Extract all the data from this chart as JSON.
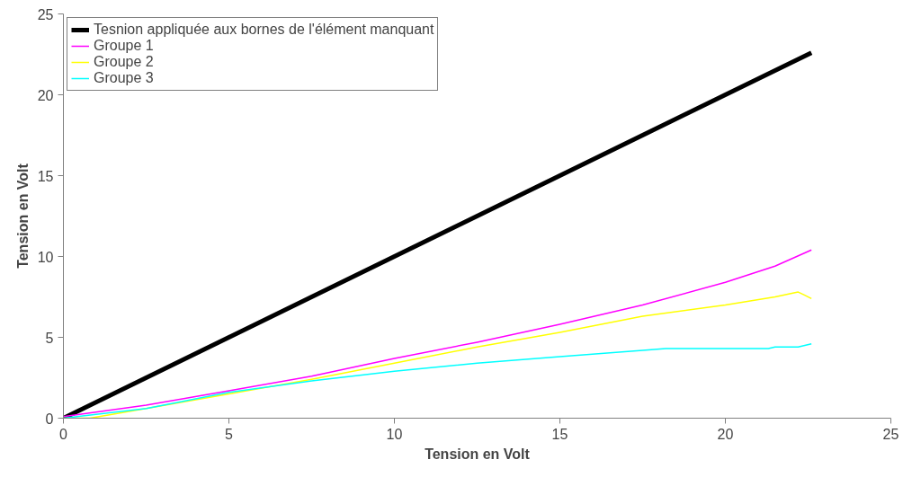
{
  "chart_data": {
    "type": "line",
    "xlabel": "Tension en Volt",
    "ylabel": "Tension en Volt",
    "xlim": [
      0,
      25
    ],
    "ylim": [
      0,
      25
    ],
    "xticks": [
      0,
      5,
      10,
      15,
      20,
      25
    ],
    "yticks": [
      0,
      5,
      10,
      15,
      20,
      25
    ],
    "grid": false,
    "legend": "top left",
    "marker": "none",
    "line_style": "solid",
    "series": [
      {
        "name": "Tesnion appliquée aux bornes de l'élément manquant",
        "color": "#000000",
        "x": [
          0,
          2.5,
          5,
          7.5,
          10,
          12.5,
          15,
          17.5,
          20,
          22.6
        ],
        "values": [
          0,
          2.5,
          5,
          7.5,
          10,
          12.5,
          15,
          17.5,
          20,
          22.6
        ]
      },
      {
        "name": "Groupe 1",
        "color": "#ff00ff",
        "x": [
          0,
          2.5,
          5,
          7.5,
          10,
          12.5,
          15,
          17.5,
          20,
          21.5,
          22.6
        ],
        "values": [
          0.1,
          0.8,
          1.7,
          2.6,
          3.7,
          4.7,
          5.8,
          7.0,
          8.4,
          9.4,
          10.4
        ]
      },
      {
        "name": "Groupe 2",
        "color": "#ffff00",
        "x": [
          0,
          0.8,
          2.5,
          5,
          7.5,
          10,
          12.5,
          15,
          17.5,
          20,
          21.5,
          22.2,
          22.4,
          22.6
        ],
        "values": [
          0,
          0,
          0.6,
          1.5,
          2.4,
          3.4,
          4.4,
          5.3,
          6.3,
          7.0,
          7.5,
          7.8,
          7.6,
          7.4
        ]
      },
      {
        "name": "Groupe 3",
        "color": "#00ffff",
        "x": [
          0,
          2.5,
          5,
          7.5,
          10,
          12.5,
          15,
          17.5,
          18.2,
          21.3,
          21.5,
          22.2,
          22.6
        ],
        "values": [
          0,
          0.6,
          1.6,
          2.3,
          2.9,
          3.4,
          3.8,
          4.2,
          4.3,
          4.3,
          4.4,
          4.4,
          4.6
        ]
      }
    ]
  }
}
